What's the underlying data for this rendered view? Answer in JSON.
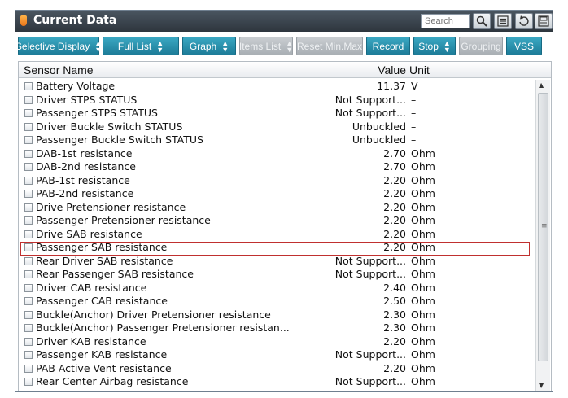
{
  "title": "Current Data",
  "search": {
    "placeholder": "Search"
  },
  "toolbar": {
    "selective_display": "Selective Display",
    "full_list": "Full List",
    "graph": "Graph",
    "items_list": "Items List",
    "reset_min_max": "Reset Min.Max",
    "record": "Record",
    "stop": "Stop",
    "grouping": "Grouping",
    "vss": "VSS"
  },
  "columns": {
    "name": "Sensor Name",
    "value": "Value",
    "unit": "Unit"
  },
  "rows": [
    {
      "name": "Battery Voltage",
      "value": "11.37",
      "unit": "V"
    },
    {
      "name": "Driver STPS STATUS",
      "value": "Not Support...",
      "unit": "–"
    },
    {
      "name": "Passenger STPS STATUS",
      "value": "Not Support...",
      "unit": "–"
    },
    {
      "name": "Driver Buckle Switch STATUS",
      "value": "Unbuckled",
      "unit": "–"
    },
    {
      "name": "Passenger Buckle Switch STATUS",
      "value": "Unbuckled",
      "unit": "–"
    },
    {
      "name": "DAB-1st resistance",
      "value": "2.70",
      "unit": "Ohm"
    },
    {
      "name": "DAB-2nd resistance",
      "value": "2.70",
      "unit": "Ohm"
    },
    {
      "name": "PAB-1st resistance",
      "value": "2.20",
      "unit": "Ohm"
    },
    {
      "name": "PAB-2nd resistance",
      "value": "2.20",
      "unit": "Ohm"
    },
    {
      "name": "Drive Pretensioner resistance",
      "value": "2.20",
      "unit": "Ohm"
    },
    {
      "name": "Passenger Pretensioner resistance",
      "value": "2.20",
      "unit": "Ohm"
    },
    {
      "name": "Drive SAB resistance",
      "value": "2.20",
      "unit": "Ohm"
    },
    {
      "name": "Passenger SAB resistance",
      "value": "2.20",
      "unit": "Ohm"
    },
    {
      "name": "Rear Driver SAB resistance",
      "value": "Not Support...",
      "unit": "Ohm"
    },
    {
      "name": "Rear Passenger SAB resistance",
      "value": "Not Support...",
      "unit": "Ohm"
    },
    {
      "name": "Driver CAB resistance",
      "value": "2.40",
      "unit": "Ohm"
    },
    {
      "name": "Passenger CAB resistance",
      "value": "2.50",
      "unit": "Ohm"
    },
    {
      "name": "Buckle(Anchor) Driver Pretensioner resistance",
      "value": "2.30",
      "unit": "Ohm"
    },
    {
      "name": "Buckle(Anchor) Passenger Pretensioner resistan...",
      "value": "2.30",
      "unit": "Ohm"
    },
    {
      "name": "Driver KAB resistance",
      "value": "2.20",
      "unit": "Ohm"
    },
    {
      "name": "Passenger KAB resistance",
      "value": "Not Support...",
      "unit": "Ohm"
    },
    {
      "name": "PAB Active Vent resistance",
      "value": "2.20",
      "unit": "Ohm"
    },
    {
      "name": "Rear Center Airbag resistance",
      "value": "Not Support...",
      "unit": "Ohm"
    }
  ],
  "icons": [
    "search-icon",
    "list-icon",
    "retry-icon",
    "save-icon"
  ],
  "colors": {
    "button": "#2a90ad",
    "disabled_button": "#b6bbc0",
    "highlight": "#c0302f",
    "titlebar": "#3a434c"
  }
}
